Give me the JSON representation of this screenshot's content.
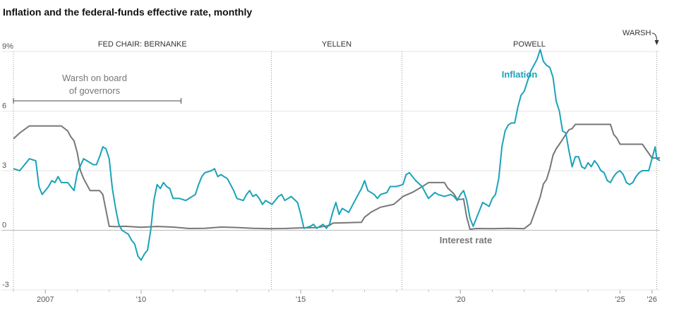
{
  "chart_data": {
    "type": "line",
    "title": "Inflation and the federal-funds effective rate, monthly",
    "ylim": [
      -3,
      9
    ],
    "xlim": [
      2006.0,
      2026.25
    ],
    "y_ticks": [
      {
        "value": 9,
        "label": "9%"
      },
      {
        "value": 6,
        "label": "6"
      },
      {
        "value": 3,
        "label": "3"
      },
      {
        "value": 0,
        "label": "0"
      },
      {
        "value": -3,
        "label": "-3"
      }
    ],
    "x_ticks": [
      {
        "value": 2007,
        "label": "2007"
      },
      {
        "value": 2010,
        "label": "'10"
      },
      {
        "value": 2015,
        "label": "'15"
      },
      {
        "value": 2020,
        "label": "'20"
      },
      {
        "value": 2025,
        "label": "'25"
      },
      {
        "value": 2026,
        "label": "'26"
      }
    ],
    "chairs": [
      {
        "label": "FED CHAIR: BERNANKE",
        "start": 2006.0
      },
      {
        "label": "YELLEN",
        "start": 2014.08
      },
      {
        "label": "POWELL",
        "start": 2018.17
      },
      {
        "label": "WARSH",
        "start": 2026.15
      }
    ],
    "annotation": {
      "text_line1": "Warsh on board",
      "text_line2": "of governors",
      "range": [
        2006.0,
        2011.25
      ]
    },
    "series": [
      {
        "name": "Inflation",
        "color": "#1aa3b8",
        "points": [
          [
            2006.0,
            3.1
          ],
          [
            2006.2,
            3.0
          ],
          [
            2006.4,
            3.4
          ],
          [
            2006.5,
            3.6
          ],
          [
            2006.7,
            3.5
          ],
          [
            2006.8,
            2.2
          ],
          [
            2006.9,
            1.8
          ],
          [
            2007.1,
            2.2
          ],
          [
            2007.2,
            2.5
          ],
          [
            2007.3,
            2.4
          ],
          [
            2007.4,
            2.7
          ],
          [
            2007.5,
            2.4
          ],
          [
            2007.7,
            2.4
          ],
          [
            2007.9,
            2.0
          ],
          [
            2008.0,
            2.9
          ],
          [
            2008.2,
            3.6
          ],
          [
            2008.3,
            3.5
          ],
          [
            2008.5,
            3.3
          ],
          [
            2008.6,
            3.3
          ],
          [
            2008.7,
            3.7
          ],
          [
            2008.8,
            4.2
          ],
          [
            2008.9,
            4.1
          ],
          [
            2009.0,
            3.6
          ],
          [
            2009.1,
            2.1
          ],
          [
            2009.2,
            1.1
          ],
          [
            2009.3,
            0.3
          ],
          [
            2009.4,
            0.0
          ],
          [
            2009.5,
            -0.1
          ],
          [
            2009.6,
            -0.2
          ],
          [
            2009.7,
            -0.5
          ],
          [
            2009.8,
            -0.7
          ],
          [
            2009.9,
            -1.3
          ],
          [
            2010.0,
            -1.5
          ],
          [
            2010.1,
            -1.2
          ],
          [
            2010.2,
            -1.0
          ],
          [
            2010.3,
            0.0
          ],
          [
            2010.4,
            1.5
          ],
          [
            2010.5,
            2.3
          ],
          [
            2010.6,
            2.1
          ],
          [
            2010.7,
            2.4
          ],
          [
            2010.8,
            2.2
          ],
          [
            2010.9,
            2.1
          ],
          [
            2011.0,
            1.6
          ],
          [
            2011.2,
            1.6
          ],
          [
            2011.4,
            1.5
          ],
          [
            2011.5,
            1.6
          ],
          [
            2011.7,
            1.8
          ],
          [
            2011.8,
            2.3
          ],
          [
            2011.9,
            2.7
          ],
          [
            2012.0,
            2.9
          ],
          [
            2012.2,
            3.0
          ],
          [
            2012.3,
            3.1
          ],
          [
            2012.4,
            2.7
          ],
          [
            2012.5,
            2.8
          ],
          [
            2012.7,
            2.6
          ],
          [
            2012.9,
            2.0
          ],
          [
            2013.0,
            1.6
          ],
          [
            2013.2,
            1.5
          ],
          [
            2013.3,
            1.8
          ],
          [
            2013.4,
            2.0
          ],
          [
            2013.5,
            1.7
          ],
          [
            2013.6,
            1.8
          ],
          [
            2013.7,
            1.6
          ],
          [
            2013.8,
            1.3
          ],
          [
            2013.9,
            1.5
          ],
          [
            2014.0,
            1.4
          ],
          [
            2014.1,
            1.3
          ],
          [
            2014.2,
            1.5
          ],
          [
            2014.3,
            1.7
          ],
          [
            2014.4,
            1.8
          ],
          [
            2014.5,
            1.5
          ],
          [
            2014.7,
            1.7
          ],
          [
            2014.9,
            1.4
          ],
          [
            2015.0,
            0.8
          ],
          [
            2015.1,
            0.1
          ],
          [
            2015.3,
            0.2
          ],
          [
            2015.4,
            0.3
          ],
          [
            2015.5,
            0.1
          ],
          [
            2015.6,
            0.2
          ],
          [
            2015.7,
            0.3
          ],
          [
            2015.8,
            0.1
          ],
          [
            2015.9,
            0.3
          ],
          [
            2016.0,
            0.9
          ],
          [
            2016.1,
            1.4
          ],
          [
            2016.2,
            0.8
          ],
          [
            2016.3,
            1.1
          ],
          [
            2016.5,
            0.9
          ],
          [
            2016.6,
            1.2
          ],
          [
            2016.8,
            1.8
          ],
          [
            2016.9,
            2.1
          ],
          [
            2017.0,
            2.5
          ],
          [
            2017.1,
            2.0
          ],
          [
            2017.3,
            1.8
          ],
          [
            2017.4,
            1.6
          ],
          [
            2017.5,
            1.8
          ],
          [
            2017.7,
            1.9
          ],
          [
            2017.8,
            2.2
          ],
          [
            2018.0,
            2.2
          ],
          [
            2018.2,
            2.3
          ],
          [
            2018.3,
            2.8
          ],
          [
            2018.4,
            2.9
          ],
          [
            2018.6,
            2.5
          ],
          [
            2018.8,
            2.2
          ],
          [
            2018.9,
            1.9
          ],
          [
            2019.0,
            1.6
          ],
          [
            2019.2,
            1.9
          ],
          [
            2019.3,
            1.8
          ],
          [
            2019.5,
            1.7
          ],
          [
            2019.7,
            1.8
          ],
          [
            2019.8,
            1.7
          ],
          [
            2019.9,
            1.5
          ],
          [
            2020.0,
            1.8
          ],
          [
            2020.1,
            2.0
          ],
          [
            2020.2,
            1.5
          ],
          [
            2020.3,
            0.6
          ],
          [
            2020.4,
            0.2
          ],
          [
            2020.5,
            0.6
          ],
          [
            2020.6,
            1.0
          ],
          [
            2020.7,
            1.4
          ],
          [
            2020.8,
            1.3
          ],
          [
            2020.9,
            1.2
          ],
          [
            2021.0,
            1.6
          ],
          [
            2021.1,
            1.8
          ],
          [
            2021.2,
            2.6
          ],
          [
            2021.3,
            4.2
          ],
          [
            2021.4,
            5.0
          ],
          [
            2021.5,
            5.3
          ],
          [
            2021.6,
            5.4
          ],
          [
            2021.7,
            5.4
          ],
          [
            2021.8,
            6.2
          ],
          [
            2021.9,
            6.8
          ],
          [
            2022.0,
            7.0
          ],
          [
            2022.1,
            7.5
          ],
          [
            2022.2,
            8.0
          ],
          [
            2022.3,
            8.3
          ],
          [
            2022.4,
            8.6
          ],
          [
            2022.5,
            9.1
          ],
          [
            2022.6,
            8.5
          ],
          [
            2022.7,
            8.3
          ],
          [
            2022.8,
            8.2
          ],
          [
            2022.9,
            7.7
          ],
          [
            2023.0,
            6.5
          ],
          [
            2023.1,
            6.0
          ],
          [
            2023.2,
            5.0
          ],
          [
            2023.3,
            4.9
          ],
          [
            2023.4,
            4.0
          ],
          [
            2023.5,
            3.2
          ],
          [
            2023.6,
            3.7
          ],
          [
            2023.7,
            3.7
          ],
          [
            2023.8,
            3.2
          ],
          [
            2023.9,
            3.1
          ],
          [
            2024.0,
            3.4
          ],
          [
            2024.1,
            3.2
          ],
          [
            2024.2,
            3.5
          ],
          [
            2024.3,
            3.3
          ],
          [
            2024.4,
            3.0
          ],
          [
            2024.5,
            2.9
          ],
          [
            2024.6,
            2.5
          ],
          [
            2024.7,
            2.4
          ],
          [
            2024.8,
            2.7
          ],
          [
            2024.9,
            2.9
          ],
          [
            2025.0,
            3.0
          ],
          [
            2025.1,
            2.8
          ],
          [
            2025.2,
            2.4
          ],
          [
            2025.3,
            2.3
          ],
          [
            2025.4,
            2.4
          ],
          [
            2025.5,
            2.7
          ],
          [
            2025.6,
            2.9
          ],
          [
            2025.7,
            3.0
          ],
          [
            2025.8,
            3.0
          ],
          [
            2025.9,
            3.0
          ],
          [
            2026.0,
            3.6
          ],
          [
            2026.1,
            4.2
          ],
          [
            2026.15,
            3.6
          ],
          [
            2026.25,
            3.5
          ]
        ]
      },
      {
        "name": "Interest rate",
        "color": "#777777",
        "points": [
          [
            2006.0,
            4.6
          ],
          [
            2006.2,
            4.9
          ],
          [
            2006.5,
            5.25
          ],
          [
            2007.0,
            5.25
          ],
          [
            2007.5,
            5.25
          ],
          [
            2007.7,
            5.0
          ],
          [
            2007.8,
            4.7
          ],
          [
            2007.9,
            4.5
          ],
          [
            2008.0,
            3.9
          ],
          [
            2008.1,
            3.0
          ],
          [
            2008.2,
            2.6
          ],
          [
            2008.3,
            2.3
          ],
          [
            2008.4,
            2.0
          ],
          [
            2008.7,
            2.0
          ],
          [
            2008.8,
            1.8
          ],
          [
            2008.9,
            1.0
          ],
          [
            2009.0,
            0.2
          ],
          [
            2009.2,
            0.18
          ],
          [
            2009.5,
            0.2
          ],
          [
            2010.0,
            0.15
          ],
          [
            2010.5,
            0.19
          ],
          [
            2011.0,
            0.16
          ],
          [
            2011.5,
            0.09
          ],
          [
            2012.0,
            0.1
          ],
          [
            2012.5,
            0.16
          ],
          [
            2013.0,
            0.14
          ],
          [
            2013.5,
            0.1
          ],
          [
            2014.0,
            0.08
          ],
          [
            2014.5,
            0.09
          ],
          [
            2015.0,
            0.12
          ],
          [
            2015.5,
            0.13
          ],
          [
            2015.9,
            0.24
          ],
          [
            2016.0,
            0.36
          ],
          [
            2016.5,
            0.38
          ],
          [
            2016.9,
            0.4
          ],
          [
            2017.0,
            0.66
          ],
          [
            2017.2,
            0.91
          ],
          [
            2017.5,
            1.16
          ],
          [
            2017.9,
            1.3
          ],
          [
            2018.0,
            1.42
          ],
          [
            2018.2,
            1.7
          ],
          [
            2018.5,
            1.91
          ],
          [
            2018.8,
            2.19
          ],
          [
            2019.0,
            2.4
          ],
          [
            2019.5,
            2.4
          ],
          [
            2019.6,
            2.13
          ],
          [
            2019.8,
            1.83
          ],
          [
            2019.9,
            1.55
          ],
          [
            2020.0,
            1.55
          ],
          [
            2020.1,
            1.58
          ],
          [
            2020.2,
            0.65
          ],
          [
            2020.3,
            0.05
          ],
          [
            2020.5,
            0.09
          ],
          [
            2021.0,
            0.08
          ],
          [
            2021.5,
            0.1
          ],
          [
            2022.0,
            0.08
          ],
          [
            2022.2,
            0.33
          ],
          [
            2022.3,
            0.77
          ],
          [
            2022.4,
            1.21
          ],
          [
            2022.5,
            1.68
          ],
          [
            2022.6,
            2.33
          ],
          [
            2022.7,
            2.56
          ],
          [
            2022.8,
            3.08
          ],
          [
            2022.9,
            3.78
          ],
          [
            2023.0,
            4.1
          ],
          [
            2023.1,
            4.33
          ],
          [
            2023.2,
            4.57
          ],
          [
            2023.3,
            4.83
          ],
          [
            2023.4,
            5.06
          ],
          [
            2023.5,
            5.12
          ],
          [
            2023.6,
            5.33
          ],
          [
            2024.0,
            5.33
          ],
          [
            2024.5,
            5.33
          ],
          [
            2024.7,
            5.33
          ],
          [
            2024.8,
            4.83
          ],
          [
            2024.9,
            4.64
          ],
          [
            2025.0,
            4.33
          ],
          [
            2025.5,
            4.33
          ],
          [
            2025.7,
            4.33
          ],
          [
            2025.8,
            4.1
          ],
          [
            2025.9,
            3.87
          ],
          [
            2026.0,
            3.64
          ],
          [
            2026.25,
            3.64
          ]
        ]
      }
    ],
    "legend": "inline labels"
  }
}
